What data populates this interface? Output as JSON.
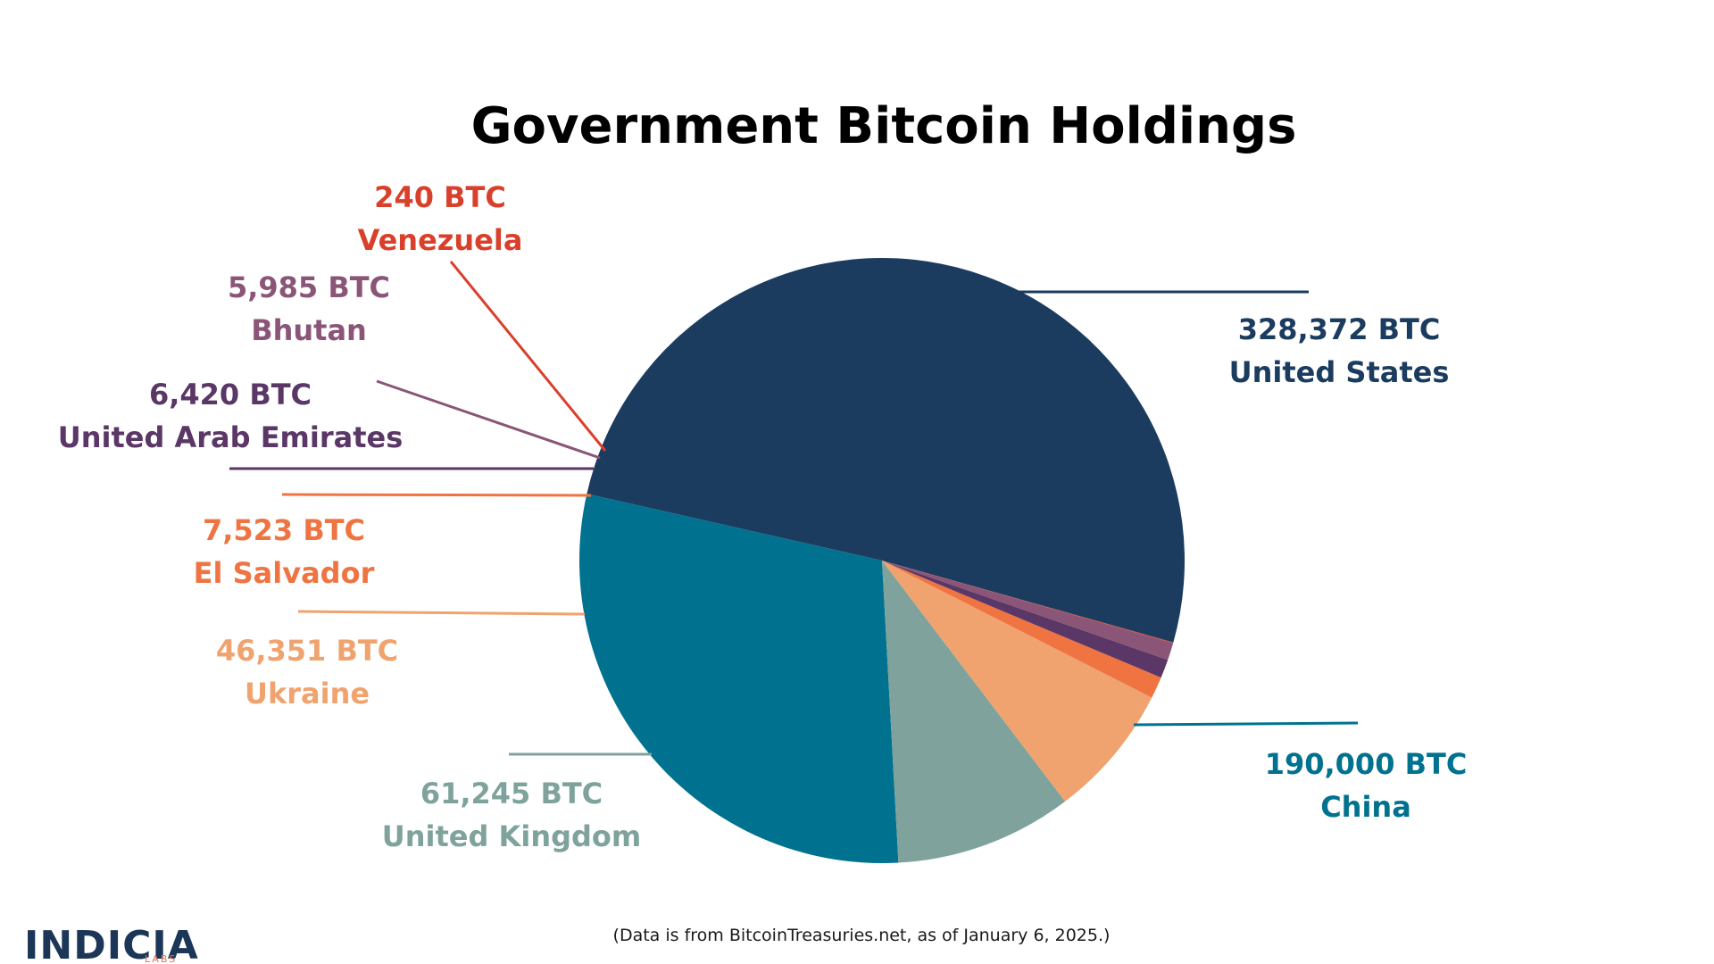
{
  "chart_data": {
    "type": "pie",
    "title": "Government Bitcoin Holdings",
    "slices": [
      {
        "name": "United States",
        "value": 328372,
        "value_label": "328,372 BTC",
        "color": "#1b3c5f"
      },
      {
        "name": "China",
        "value": 190000,
        "value_label": "190,000 BTC",
        "color": "#00728f"
      },
      {
        "name": "United Kingdom",
        "value": 61245,
        "value_label": "61,245 BTC",
        "color": "#7fa39c"
      },
      {
        "name": "Ukraine",
        "value": 46351,
        "value_label": "46,351 BTC",
        "color": "#f0a36e"
      },
      {
        "name": "El Salvador",
        "value": 7523,
        "value_label": "7,523 BTC",
        "color": "#ef7442"
      },
      {
        "name": "United Arab Emirates",
        "value": 6420,
        "value_label": "6,420 BTC",
        "color": "#5a3766"
      },
      {
        "name": "Bhutan",
        "value": 5985,
        "value_label": "5,985 BTC",
        "color": "#8a5577"
      },
      {
        "name": "Venezuela",
        "value": 240,
        "value_label": "240 BTC",
        "color": "#d9402b"
      }
    ]
  },
  "source_note": "(Data is from BitcoinTreasuries.net, as of January 6, 2025.)",
  "logo": {
    "name": "INDICIA",
    "sub": "LABS"
  }
}
